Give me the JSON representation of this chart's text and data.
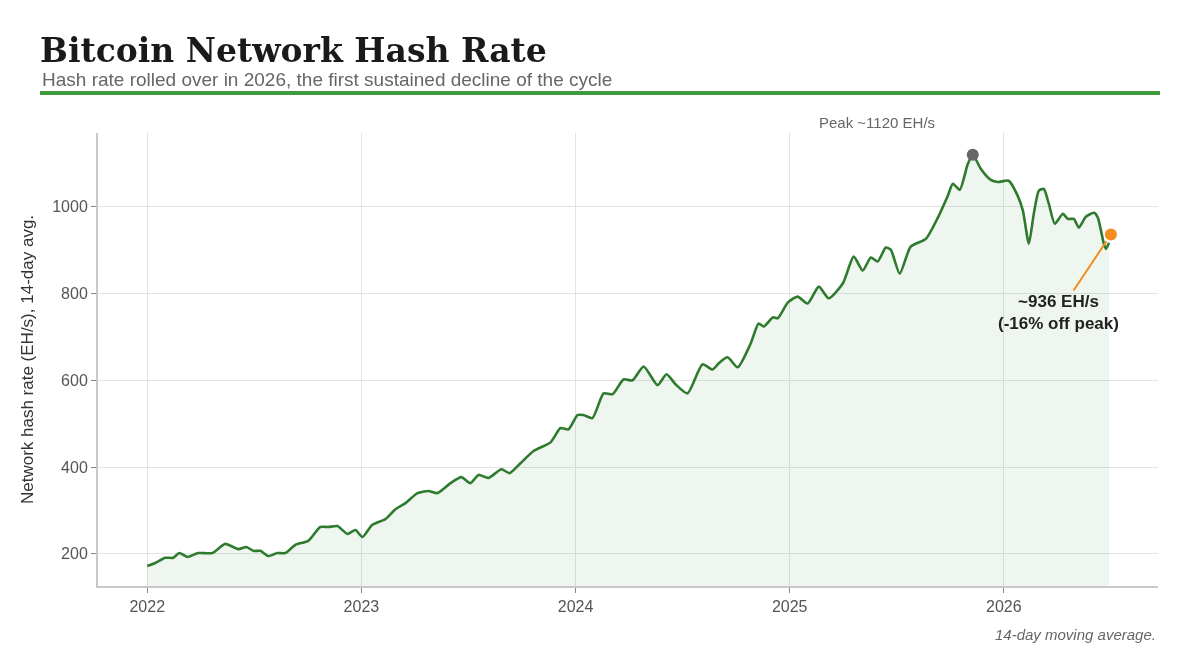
{
  "chart_data": {
    "type": "area",
    "title": "Bitcoin Network Hash Rate",
    "subtitle": "Hash rate rolled over in 2026, the first sustained decline of the cycle",
    "ylabel": "Network hash rate (EH/s), 14-day avg.",
    "xlim": [
      2021.77,
      2026.72
    ],
    "xticks": [
      2022,
      2023,
      2024,
      2025,
      2026
    ],
    "ylim": [
      126,
      1170
    ],
    "yticks": [
      200,
      400,
      600,
      800,
      1000
    ],
    "grid": true,
    "legend": false,
    "series": [
      {
        "color": "#2e7a2e",
        "x": [
          2022.0,
          2022.037,
          2022.084,
          2022.121,
          2022.15,
          2022.187,
          2022.238,
          2022.304,
          2022.364,
          2022.425,
          2022.463,
          2022.495,
          2022.528,
          2022.565,
          2022.607,
          2022.645,
          2022.692,
          2022.752,
          2022.808,
          2022.846,
          2022.888,
          2022.935,
          2022.972,
          2023.005,
          2023.051,
          2023.112,
          2023.159,
          2023.206,
          2023.262,
          2023.313,
          2023.355,
          2023.416,
          2023.467,
          2023.509,
          2023.547,
          2023.593,
          2023.654,
          2023.692,
          2023.743,
          2023.804,
          2023.883,
          2023.93,
          2023.967,
          2024.009,
          2024.037,
          2024.079,
          2024.131,
          2024.173,
          2024.224,
          2024.266,
          2024.318,
          2024.383,
          2024.425,
          2024.467,
          2024.523,
          2024.593,
          2024.64,
          2024.668,
          2024.71,
          2024.757,
          2024.818,
          2024.855,
          2024.879,
          2024.921,
          2024.944,
          2024.991,
          2025.037,
          2025.084,
          2025.136,
          2025.182,
          2025.248,
          2025.299,
          2025.341,
          2025.379,
          2025.411,
          2025.449,
          2025.472,
          2025.514,
          2025.565,
          2025.636,
          2025.692,
          2025.738,
          2025.762,
          2025.794,
          2025.832,
          2025.855,
          2025.893,
          2025.939,
          2025.972,
          2026.023,
          2026.065,
          2026.089,
          2026.117,
          2026.14,
          2026.164,
          2026.187,
          2026.21,
          2026.238,
          2026.276,
          2026.299,
          2026.327,
          2026.35,
          2026.383,
          2026.421,
          2026.439,
          2026.467,
          2026.477,
          2026.491
        ],
        "values": [
          172,
          179,
          191,
          191,
          202,
          193,
          202,
          202,
          223,
          211,
          216,
          207,
          207,
          195,
          202,
          202,
          221,
          230,
          262,
          262,
          264,
          246,
          255,
          239,
          267,
          280,
          303,
          317,
          340,
          345,
          340,
          363,
          377,
          363,
          382,
          375,
          395,
          386,
          409,
          437,
          457,
          490,
          487,
          520,
          520,
          513,
          570,
          568,
          602,
          600,
          632,
          589,
          614,
          591,
          570,
          637,
          625,
          639,
          653,
          630,
          685,
          731,
          724,
          745,
          743,
          779,
          793,
          777,
          816,
          789,
          823,
          885,
          853,
          883,
          874,
          906,
          901,
          846,
          908,
          926,
          975,
          1025,
          1053,
          1039,
          1099,
          1120,
          1087,
          1062,
          1057,
          1060,
          1025,
          991,
          915,
          984,
          1037,
          1041,
          1007,
          961,
          984,
          972,
          972,
          952,
          977,
          986,
          975,
          915,
          903,
          917
        ]
      },
      {
        "type": "scatter",
        "color": "#666666",
        "x": [
          2025.855
        ],
        "values": [
          1120
        ]
      },
      {
        "type": "scatter",
        "color": "#f28c1e",
        "x": [
          2026.5
        ],
        "values": [
          936
        ]
      }
    ],
    "annotations": [
      "Peak ~1120 EH/s",
      {
        "text": "~936 EH/s\n(-16% off peak)",
        "x": 2026.5,
        "y": 936
      },
      "14-day moving average."
    ]
  }
}
